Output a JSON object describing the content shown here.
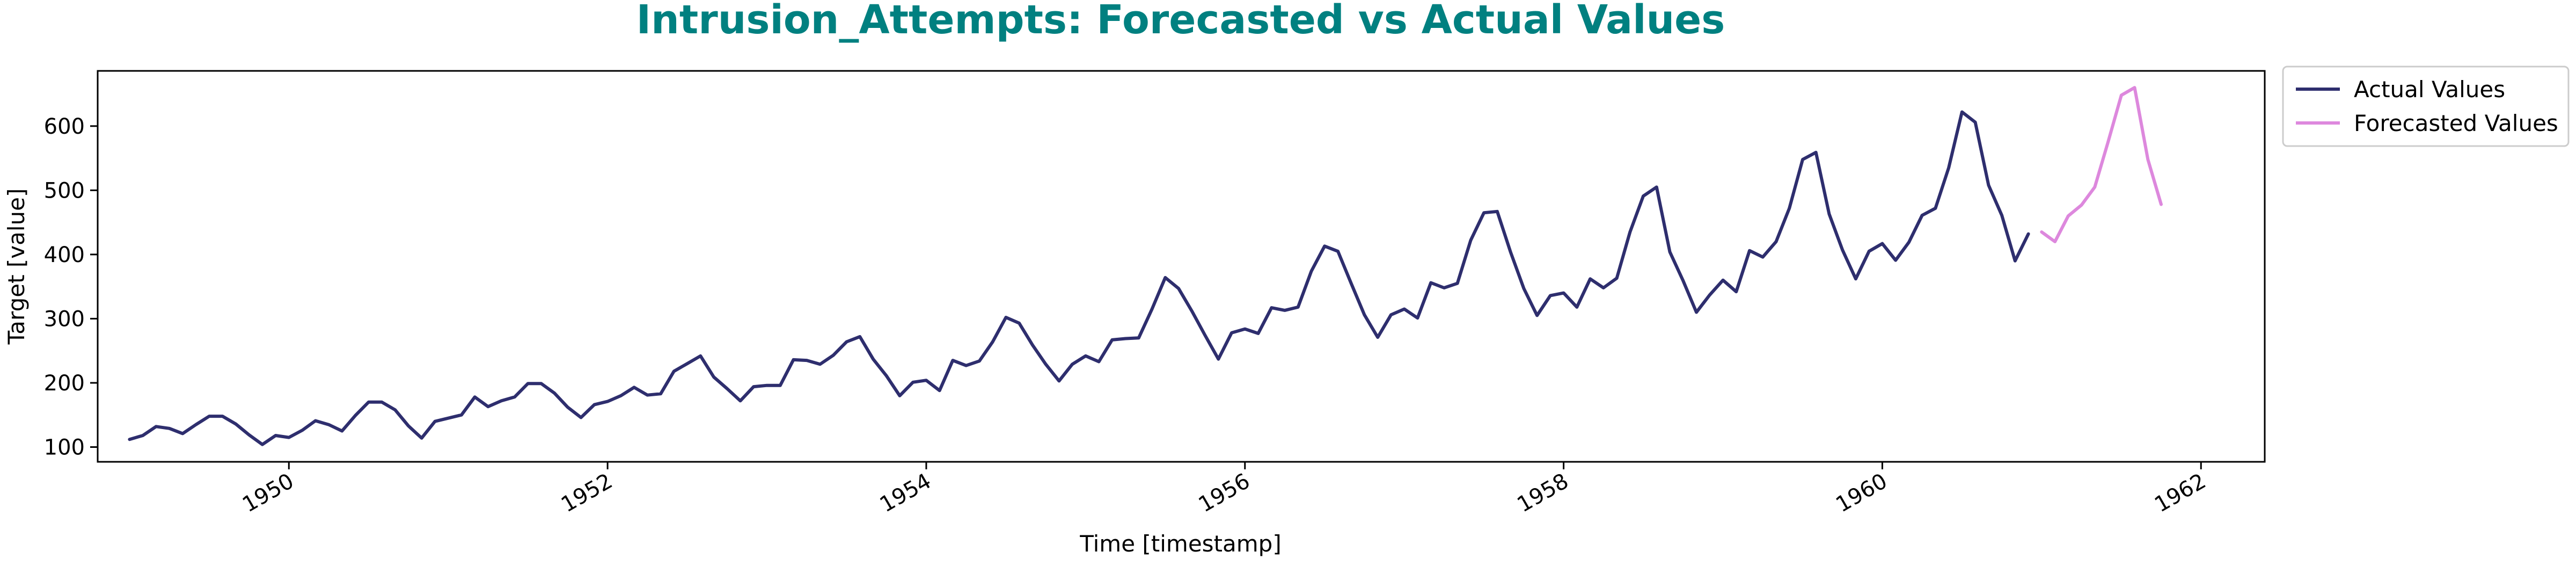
{
  "chart_data": {
    "type": "line",
    "title": "Intrusion_Attempts: Forecasted vs Actual Values",
    "xlabel": "Time [timestamp]",
    "ylabel": "Target [value]",
    "xlim": [
      1948.8,
      1962.4
    ],
    "ylim": [
      77,
      686
    ],
    "x_ticks": [
      1950,
      1952,
      1954,
      1956,
      1958,
      1960,
      1962
    ],
    "x_tick_labels": [
      "1950",
      "1952",
      "1954",
      "1956",
      "1958",
      "1960",
      "1962"
    ],
    "y_ticks": [
      100,
      200,
      300,
      400,
      500,
      600
    ],
    "y_tick_labels": [
      "100",
      "200",
      "300",
      "400",
      "500",
      "600"
    ],
    "grid": false,
    "legend_position": "outside-top-right",
    "title_color": "#008080",
    "series": [
      {
        "name": "Actual Values",
        "color": "#2e2e6e",
        "start": "1949-01",
        "step": "1 month",
        "values": [
          112,
          118,
          132,
          129,
          121,
          135,
          148,
          148,
          136,
          119,
          104,
          118,
          115,
          126,
          141,
          135,
          125,
          149,
          170,
          170,
          158,
          133,
          114,
          140,
          145,
          150,
          178,
          163,
          172,
          178,
          199,
          199,
          184,
          162,
          146,
          166,
          171,
          180,
          193,
          181,
          183,
          218,
          230,
          242,
          209,
          191,
          172,
          194,
          196,
          196,
          236,
          235,
          229,
          243,
          264,
          272,
          237,
          211,
          180,
          201,
          204,
          188,
          235,
          227,
          234,
          264,
          302,
          293,
          259,
          229,
          203,
          229,
          242,
          233,
          267,
          269,
          270,
          315,
          364,
          347,
          312,
          274,
          237,
          278,
          284,
          277,
          317,
          313,
          318,
          374,
          413,
          405,
          355,
          306,
          271,
          306,
          315,
          301,
          356,
          348,
          355,
          422,
          465,
          467,
          404,
          347,
          305,
          336,
          340,
          318,
          362,
          348,
          363,
          435,
          491,
          505,
          404,
          359,
          310,
          337,
          360,
          342,
          406,
          396,
          420,
          472,
          548,
          559,
          463,
          407,
          362,
          405,
          417,
          391,
          419,
          461,
          472,
          535,
          622,
          606,
          508,
          461,
          390,
          432
        ]
      },
      {
        "name": "Forecasted Values",
        "color": "#dd88dd",
        "start": "1961-01",
        "step": "1 month",
        "values": [
          435,
          420,
          460,
          477,
          505,
          575,
          648,
          660,
          548,
          478
        ]
      }
    ]
  }
}
